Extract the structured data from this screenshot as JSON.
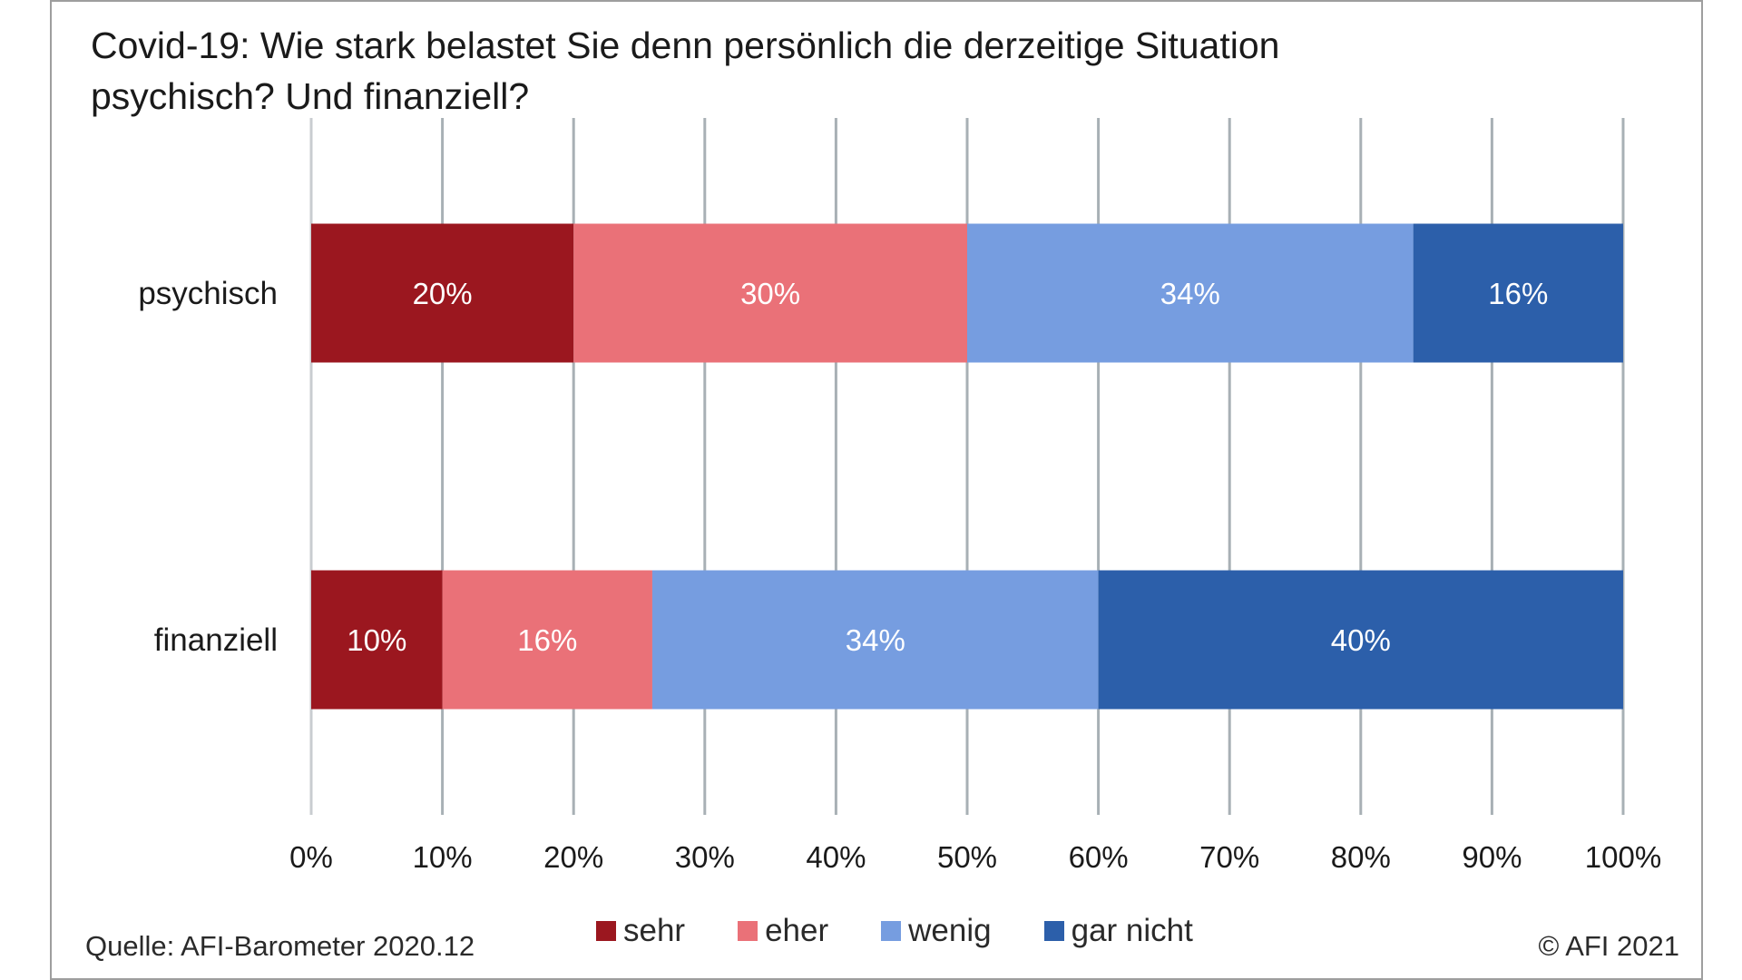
{
  "title": "Covid-19: Wie stark belastet Sie denn persönlich die derzeitige Situation psychisch? Und finanziell?",
  "source": "Quelle: AFI-Barometer 2020.12",
  "copyright": "© AFI 2021",
  "colors": {
    "sehr": "#9b171f",
    "eher": "#ea7178",
    "wenig": "#769de0",
    "gar_nicht": "#2c5faa",
    "grid": "#a8b0b5",
    "text": "#1a1a1a"
  },
  "chart_data": {
    "type": "bar",
    "orientation": "horizontal",
    "stacked": true,
    "title": "Covid-19: Wie stark belastet Sie denn persönlich die derzeitige Situation psychisch? Und finanziell?",
    "categories": [
      "psychisch",
      "finanziell"
    ],
    "series": [
      {
        "name": "sehr",
        "values": [
          20,
          10
        ],
        "labels": [
          "20%",
          "10%"
        ]
      },
      {
        "name": "eher",
        "values": [
          30,
          16
        ],
        "labels": [
          "30%",
          "16%"
        ]
      },
      {
        "name": "wenig",
        "values": [
          34,
          34
        ],
        "labels": [
          "34%",
          "34%"
        ]
      },
      {
        "name": "gar nicht",
        "values": [
          16,
          40
        ],
        "labels": [
          "16%",
          "40%"
        ]
      }
    ],
    "xlim": [
      0,
      100
    ],
    "x_ticks": [
      "0%",
      "10%",
      "20%",
      "30%",
      "40%",
      "50%",
      "60%",
      "70%",
      "80%",
      "90%",
      "100%"
    ],
    "grid": true,
    "legend_position": "bottom"
  }
}
